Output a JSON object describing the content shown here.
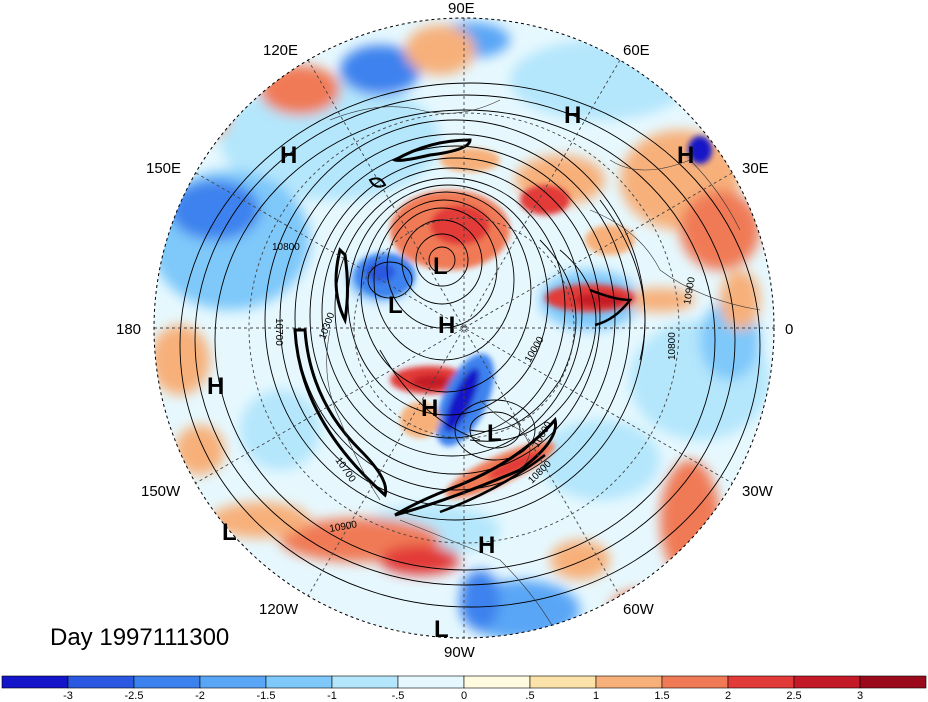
{
  "title": "Day 1997111300",
  "longitude_labels": {
    "top": "90E",
    "top_right": "60E",
    "right_upper": "30E",
    "right": "0",
    "right_lower": "30W",
    "bottom_right": "60W",
    "bottom": "90W",
    "bottom_left": "120W",
    "left_lower": "150W",
    "left": "180",
    "left_upper": "150E",
    "top_left": "120E"
  },
  "pressure_centers": [
    {
      "label": "H",
      "id": "h-asia-north"
    },
    {
      "label": "H",
      "id": "h-europe-east"
    },
    {
      "label": "H",
      "id": "h-siberia"
    },
    {
      "label": "L",
      "id": "l-polar-main"
    },
    {
      "label": "L",
      "id": "l-bering"
    },
    {
      "label": "H",
      "id": "h-pole"
    },
    {
      "label": "H",
      "id": "h-pacific"
    },
    {
      "label": "H",
      "id": "h-canada"
    },
    {
      "label": "L",
      "id": "l-hudson"
    },
    {
      "label": "L",
      "id": "l-pacific-south"
    },
    {
      "label": "H",
      "id": "h-atlantic-south"
    },
    {
      "label": "L",
      "id": "l-central-america"
    }
  ],
  "contour_labels": [
    "10800",
    "10700",
    "10300",
    "10000",
    "10600",
    "10800",
    "10900",
    "10700",
    "10800",
    "10900"
  ],
  "colorbar": {
    "ticks": [
      "-3",
      "-2.5",
      "-2",
      "-1.5",
      "-1",
      "-.5",
      "0",
      ".5",
      "1",
      "1.5",
      "2",
      "2.5",
      "3"
    ],
    "colors": [
      "#1414c8",
      "#2a58e0",
      "#3c82ee",
      "#5aa6f6",
      "#7ec8fa",
      "#b4e6fc",
      "#e6f8fe",
      "#fefae0",
      "#fbe2a8",
      "#f7b07a",
      "#f07a56",
      "#e23a38",
      "#c41a28",
      "#9a0a1c"
    ]
  }
}
